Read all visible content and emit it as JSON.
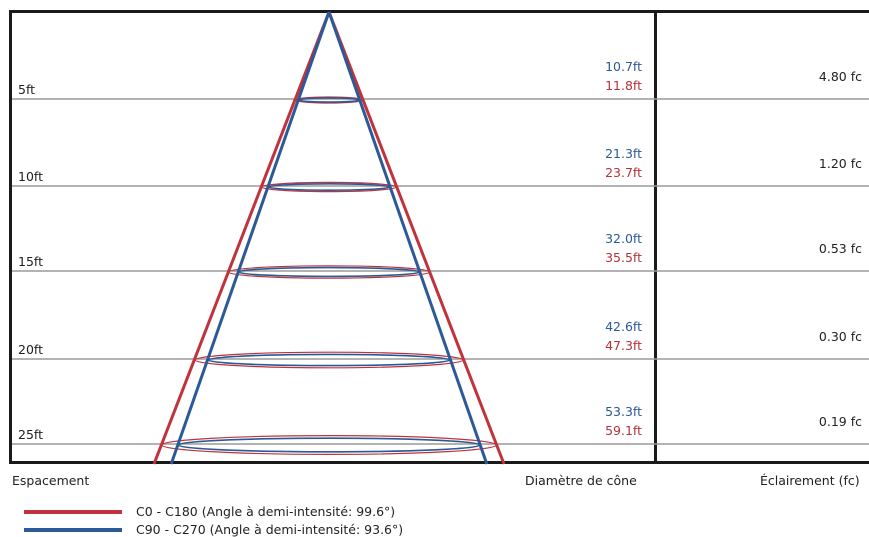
{
  "colors": {
    "c0": "#c0323c",
    "c90": "#2b5a96",
    "frame": "#1a1a1a",
    "grid": "#9a9a9a"
  },
  "rows": [
    {
      "distance": "5ft",
      "c90_diameter": "10.7ft",
      "c0_diameter": "11.8ft",
      "illuminance": "4.80 fc"
    },
    {
      "distance": "10ft",
      "c90_diameter": "21.3ft",
      "c0_diameter": "23.7ft",
      "illuminance": "1.20 fc"
    },
    {
      "distance": "15ft",
      "c90_diameter": "32.0ft",
      "c0_diameter": "35.5ft",
      "illuminance": "0.53 fc"
    },
    {
      "distance": "20ft",
      "c90_diameter": "42.6ft",
      "c0_diameter": "47.3ft",
      "illuminance": "0.30 fc"
    },
    {
      "distance": "25ft",
      "c90_diameter": "53.3ft",
      "c0_diameter": "59.1ft",
      "illuminance": "0.19 fc"
    }
  ],
  "footer": {
    "spacing_label": "Espacement",
    "diameter_label": "Diamètre de cône",
    "illuminance_label": "Éclairement (fc)"
  },
  "legend": [
    {
      "label": "C0 - C180 (Angle à demi-intensité: 99.6°)",
      "color": "#c0323c"
    },
    {
      "label": "C90 - C270 (Angle à demi-intensité: 93.6°)",
      "color": "#2b5a96"
    }
  ]
}
